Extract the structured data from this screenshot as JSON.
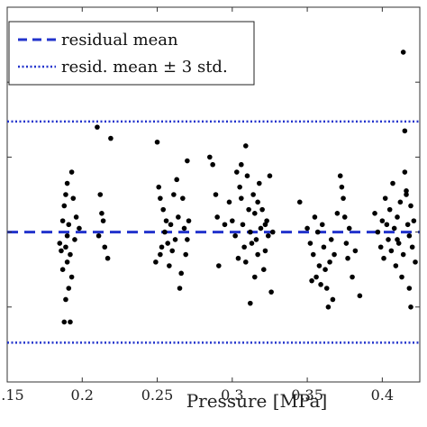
{
  "chart_data": {
    "type": "scatter",
    "title": "",
    "xlabel": "Pressure [MPa]",
    "ylabel": "",
    "xlim": [
      0.15,
      0.425
    ],
    "ylim": [
      -4,
      6
    ],
    "x_ticks": [
      0.15,
      0.2,
      0.25,
      0.3,
      0.35,
      0.4
    ],
    "x_tick_labels": [
      ".15",
      "0.2",
      "0.25",
      "0.3",
      "0.35",
      "0.4"
    ],
    "y_ticks": [
      -4,
      -2,
      0,
      2,
      4,
      6
    ],
    "grid": false,
    "legend": {
      "placement": "top-left",
      "entries": [
        {
          "label": "residual mean",
          "style": "dashed",
          "color": "#2233cc"
        },
        {
          "label": "resid. mean ± 3 std.",
          "style": "dotted",
          "color": "#2233cc"
        }
      ]
    },
    "reference_lines": {
      "mean": 0,
      "upper_3std": 2.95,
      "lower_3std": -2.95
    },
    "marker_color": "#000000",
    "series": [
      {
        "points": [
          [
            0.189,
            1.0
          ],
          [
            0.187,
            0.3
          ],
          [
            0.19,
            1.3
          ],
          [
            0.193,
            1.6
          ],
          [
            0.188,
            0.7
          ],
          [
            0.191,
            0.2
          ],
          [
            0.194,
            0.9
          ],
          [
            0.185,
            -0.3
          ],
          [
            0.189,
            -0.4
          ],
          [
            0.192,
            -0.6
          ],
          [
            0.19,
            -0.8
          ],
          [
            0.187,
            -1.0
          ],
          [
            0.193,
            -1.2
          ],
          [
            0.191,
            -1.5
          ],
          [
            0.189,
            -1.8
          ],
          [
            0.195,
            -0.2
          ],
          [
            0.186,
            -0.5
          ],
          [
            0.19,
            -0.1
          ],
          [
            0.198,
            0.1
          ],
          [
            0.196,
            0.4
          ],
          [
            0.188,
            -2.4
          ],
          [
            0.192,
            -2.4
          ],
          [
            0.21,
            2.8
          ],
          [
            0.212,
            1.0
          ],
          [
            0.215,
            -0.4
          ],
          [
            0.217,
            -0.7
          ],
          [
            0.213,
            0.5
          ],
          [
            0.219,
            2.5
          ],
          [
            0.211,
            -0.1
          ],
          [
            0.214,
            0.3
          ],
          [
            0.25,
            2.4
          ],
          [
            0.251,
            1.2
          ],
          [
            0.254,
            0.6
          ],
          [
            0.256,
            0.3
          ],
          [
            0.249,
            -0.8
          ],
          [
            0.253,
            -0.4
          ],
          [
            0.258,
            -0.9
          ],
          [
            0.255,
            0.0
          ],
          [
            0.252,
            0.9
          ],
          [
            0.259,
            0.2
          ],
          [
            0.262,
            -0.2
          ],
          [
            0.261,
            1.0
          ],
          [
            0.26,
            -0.5
          ],
          [
            0.264,
            0.4
          ],
          [
            0.266,
            -1.1
          ],
          [
            0.267,
            0.9
          ],
          [
            0.263,
            1.4
          ],
          [
            0.268,
            0.1
          ],
          [
            0.269,
            -0.6
          ],
          [
            0.27,
            -0.2
          ],
          [
            0.271,
            0.3
          ],
          [
            0.265,
            -1.5
          ],
          [
            0.257,
            -0.3
          ],
          [
            0.252,
            -0.6
          ],
          [
            0.27,
            1.9
          ],
          [
            0.285,
            2.0
          ],
          [
            0.287,
            1.8
          ],
          [
            0.289,
            1.0
          ],
          [
            0.29,
            0.4
          ],
          [
            0.291,
            -0.9
          ],
          [
            0.295,
            0.2
          ],
          [
            0.298,
            0.8
          ],
          [
            0.3,
            0.3
          ],
          [
            0.302,
            -0.1
          ],
          [
            0.303,
            1.6
          ],
          [
            0.305,
            1.2
          ],
          [
            0.306,
            0.9
          ],
          [
            0.307,
            0.2
          ],
          [
            0.308,
            -0.4
          ],
          [
            0.309,
            -0.8
          ],
          [
            0.31,
            1.5
          ],
          [
            0.311,
            0.6
          ],
          [
            0.312,
            0.0
          ],
          [
            0.313,
            -0.3
          ],
          [
            0.314,
            1.0
          ],
          [
            0.315,
            0.5
          ],
          [
            0.316,
            -0.2
          ],
          [
            0.317,
            -0.6
          ],
          [
            0.318,
            1.3
          ],
          [
            0.319,
            0.1
          ],
          [
            0.32,
            0.6
          ],
          [
            0.321,
            -1.0
          ],
          [
            0.322,
            -0.5
          ],
          [
            0.323,
            0.3
          ],
          [
            0.324,
            -0.1
          ],
          [
            0.325,
            1.5
          ],
          [
            0.326,
            -1.6
          ],
          [
            0.327,
            0.0
          ],
          [
            0.309,
            2.3
          ],
          [
            0.312,
            -1.9
          ],
          [
            0.304,
            -0.7
          ],
          [
            0.306,
            1.8
          ],
          [
            0.317,
            0.8
          ],
          [
            0.322,
            0.2
          ],
          [
            0.315,
            -1.2
          ],
          [
            0.345,
            0.8
          ],
          [
            0.35,
            0.1
          ],
          [
            0.352,
            -0.3
          ],
          [
            0.354,
            -0.6
          ],
          [
            0.355,
            0.4
          ],
          [
            0.356,
            -1.2
          ],
          [
            0.357,
            0.0
          ],
          [
            0.358,
            -0.9
          ],
          [
            0.359,
            -1.4
          ],
          [
            0.36,
            0.2
          ],
          [
            0.361,
            -0.4
          ],
          [
            0.362,
            -1.0
          ],
          [
            0.363,
            -1.5
          ],
          [
            0.364,
            -2.0
          ],
          [
            0.365,
            -0.8
          ],
          [
            0.366,
            -0.2
          ],
          [
            0.367,
            -1.8
          ],
          [
            0.37,
            0.5
          ],
          [
            0.372,
            1.5
          ],
          [
            0.374,
            0.9
          ],
          [
            0.375,
            0.4
          ],
          [
            0.376,
            -0.3
          ],
          [
            0.377,
            -0.7
          ],
          [
            0.378,
            0.1
          ],
          [
            0.38,
            -1.2
          ],
          [
            0.382,
            -0.5
          ],
          [
            0.385,
            -1.7
          ],
          [
            0.353,
            -1.3
          ],
          [
            0.373,
            1.2
          ],
          [
            0.368,
            -0.6
          ],
          [
            0.395,
            0.5
          ],
          [
            0.397,
            0.0
          ],
          [
            0.399,
            -0.4
          ],
          [
            0.4,
            0.3
          ],
          [
            0.401,
            -0.7
          ],
          [
            0.402,
            0.9
          ],
          [
            0.403,
            0.2
          ],
          [
            0.404,
            -0.2
          ],
          [
            0.405,
            0.6
          ],
          [
            0.406,
            -0.5
          ],
          [
            0.407,
            1.3
          ],
          [
            0.408,
            0.1
          ],
          [
            0.409,
            -0.9
          ],
          [
            0.41,
            0.4
          ],
          [
            0.411,
            -0.3
          ],
          [
            0.412,
            0.8
          ],
          [
            0.413,
            -1.2
          ],
          [
            0.414,
            -0.6
          ],
          [
            0.415,
            1.6
          ],
          [
            0.416,
            1.1
          ],
          [
            0.417,
            0.2
          ],
          [
            0.418,
            -0.1
          ],
          [
            0.419,
            0.7
          ],
          [
            0.42,
            -0.4
          ],
          [
            0.415,
            2.7
          ],
          [
            0.414,
            4.8
          ],
          [
            0.416,
            1.0
          ],
          [
            0.418,
            -1.5
          ],
          [
            0.419,
            -2.0
          ],
          [
            0.421,
            0.3
          ],
          [
            0.422,
            -0.8
          ],
          [
            0.41,
            -0.2
          ]
        ]
      }
    ]
  }
}
